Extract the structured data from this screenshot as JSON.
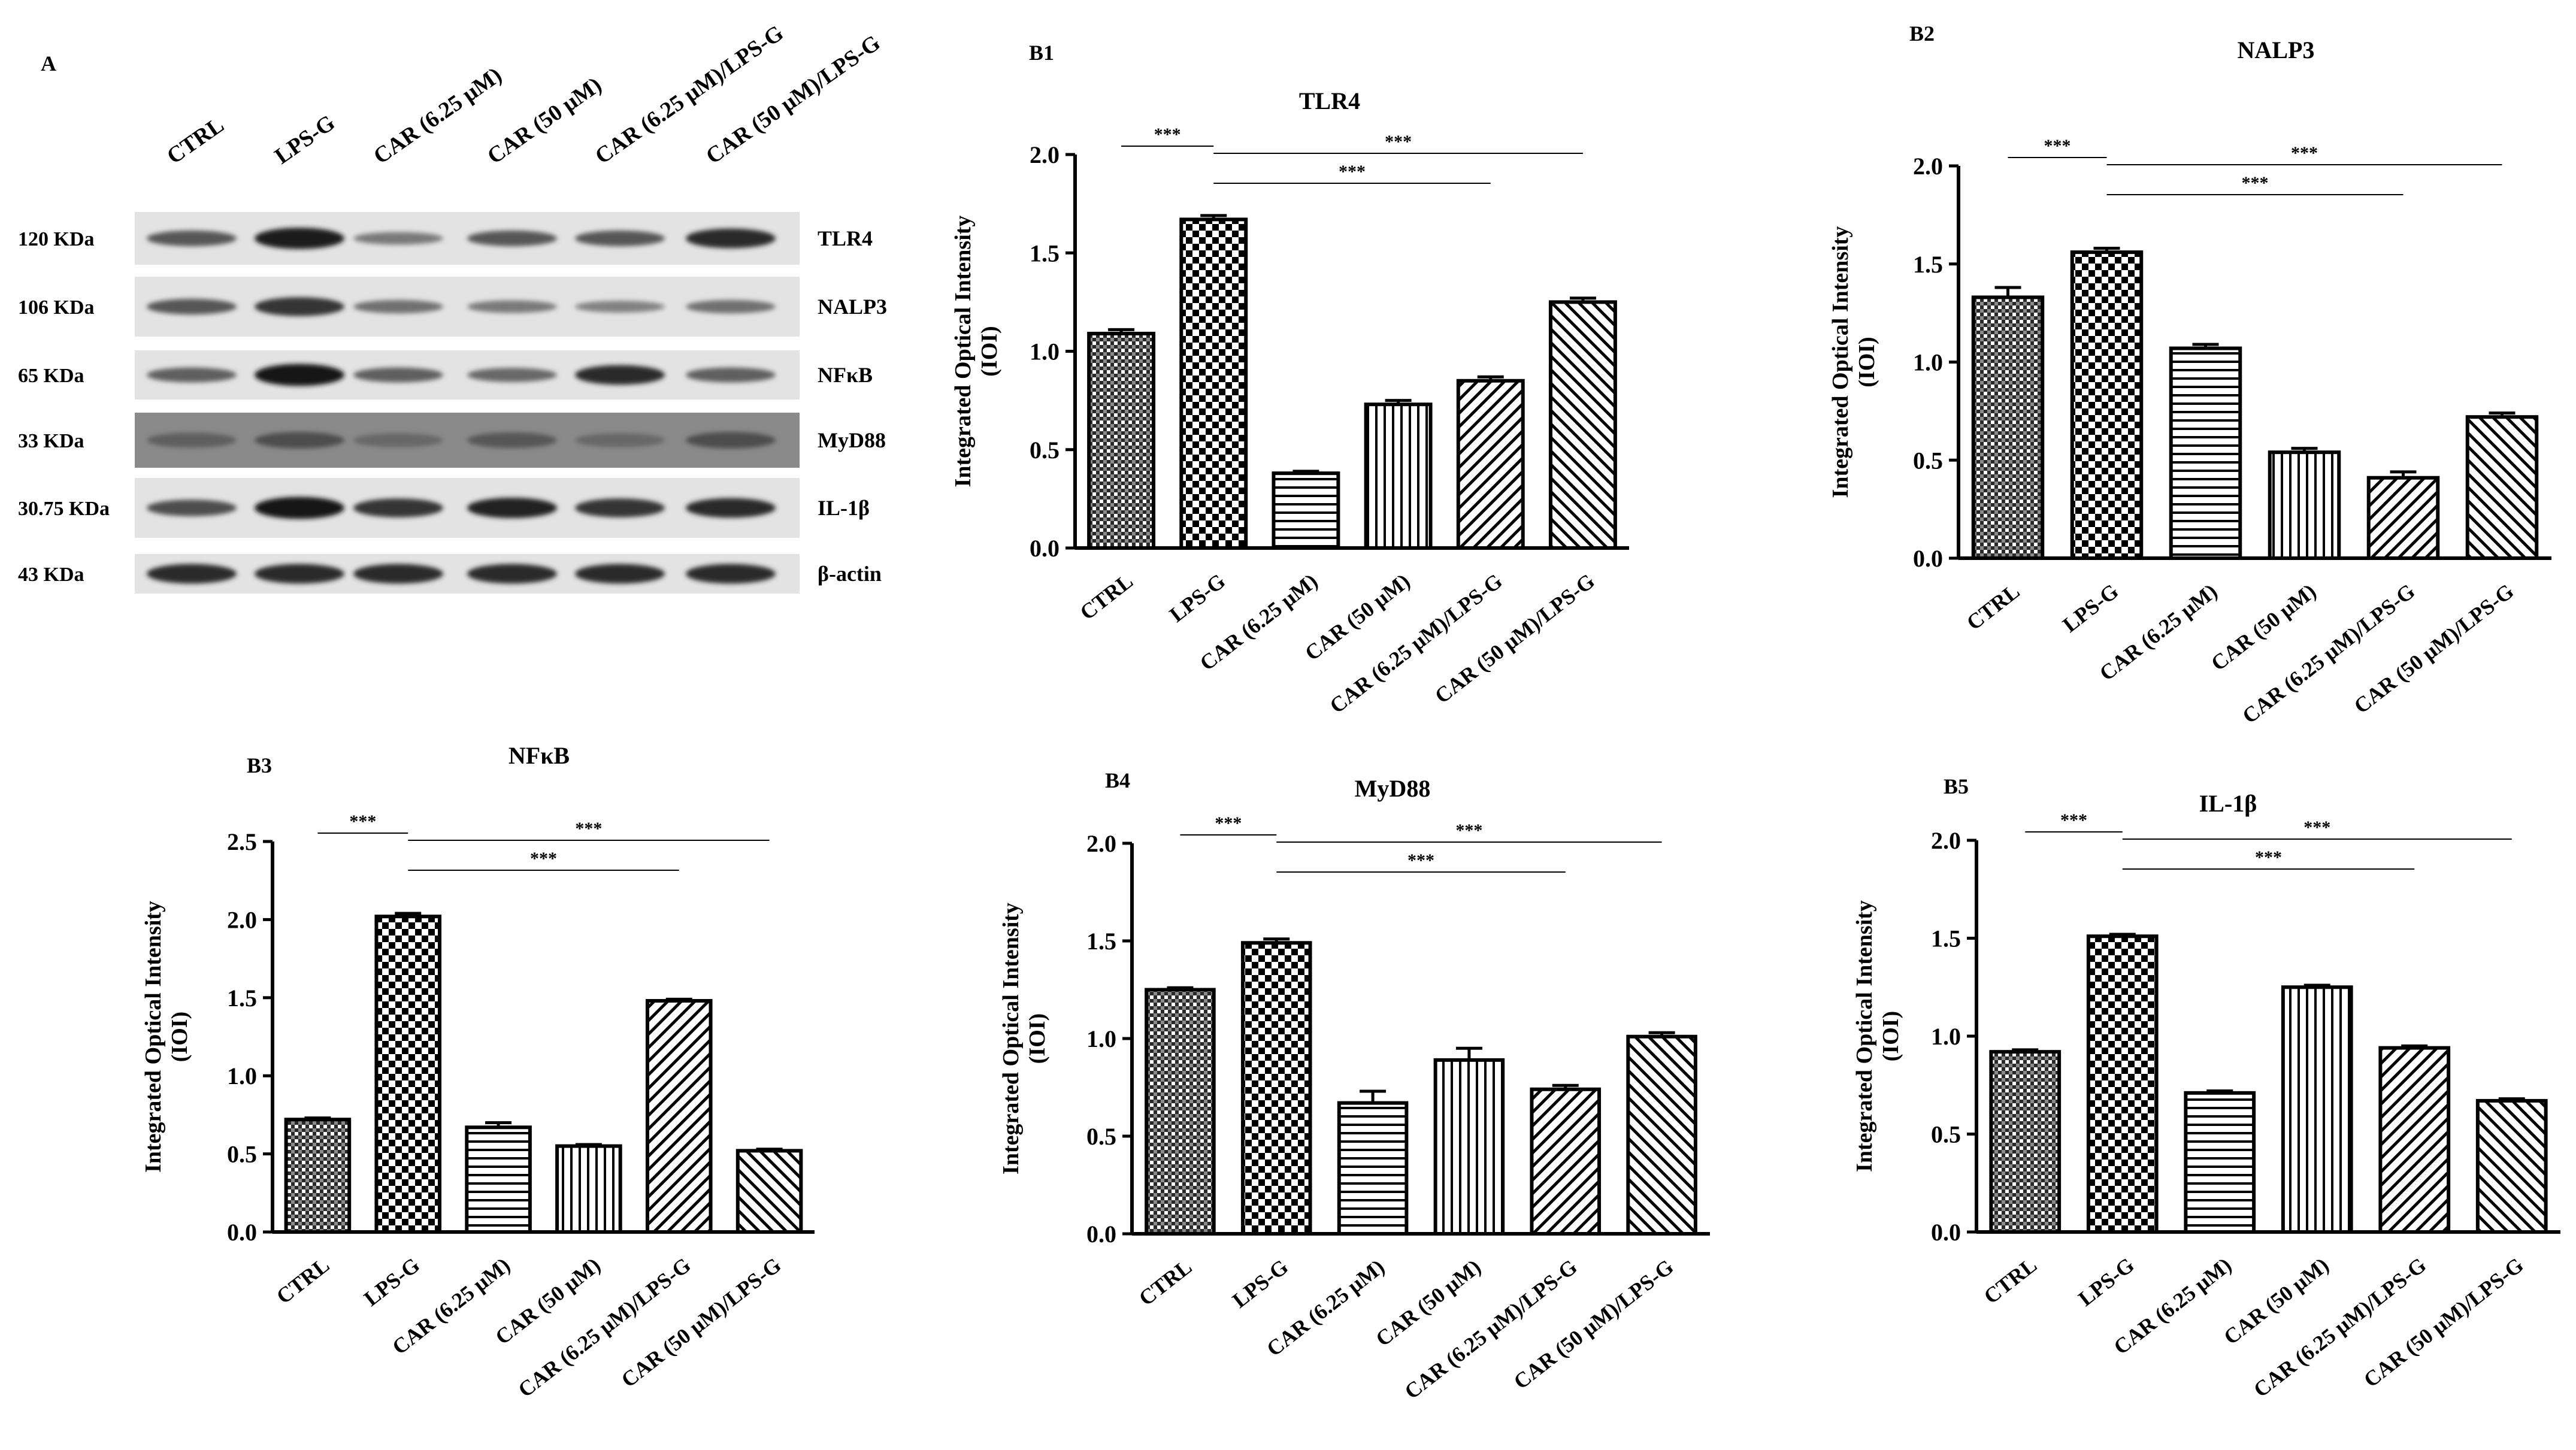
{
  "blot": {
    "panel_label": "A",
    "lanes": [
      "CTRL",
      "LPS-G",
      "CAR (6.25 μM)",
      "CAR (50 μM)",
      "CAR (6.25 μM)/LPS-G",
      "CAR (50 μM)/LPS-G"
    ],
    "rows": [
      {
        "mw": "120 KDa",
        "protein": "TLR4",
        "intensity": [
          0.55,
          0.9,
          0.35,
          0.55,
          0.55,
          0.8
        ]
      },
      {
        "mw": "106 KDa",
        "protein": "NALP3",
        "intensity": [
          0.55,
          0.75,
          0.4,
          0.35,
          0.3,
          0.4
        ]
      },
      {
        "mw": "65 KDa",
        "protein": "NFκB",
        "intensity": [
          0.5,
          0.95,
          0.5,
          0.45,
          0.8,
          0.5
        ]
      },
      {
        "mw": "33 KDa",
        "protein": "MyD88",
        "intensity": [
          0.5,
          0.6,
          0.45,
          0.55,
          0.45,
          0.6
        ]
      },
      {
        "mw": "30.75 KDa",
        "protein": "IL-1β",
        "intensity": [
          0.6,
          0.95,
          0.75,
          0.85,
          0.75,
          0.8
        ]
      },
      {
        "mw": "43 KDa",
        "protein": "β-actin",
        "intensity": [
          0.8,
          0.8,
          0.8,
          0.8,
          0.8,
          0.8
        ]
      }
    ]
  },
  "chart_data": [
    {
      "panel": "B1",
      "type": "bar",
      "title": "TLR4",
      "categories": [
        "CTRL",
        "LPS-G",
        "CAR (6.25 μM)",
        "CAR (50 μM)",
        "CAR (6.25 μM)/LPS-G",
        "CAR (50 μM)/LPS-G"
      ],
      "values": [
        1.09,
        1.67,
        0.38,
        0.73,
        0.85,
        1.25
      ],
      "errors": [
        0.02,
        0.02,
        0.01,
        0.02,
        0.02,
        0.02
      ],
      "ylabel": [
        "Integrated  Optical Intensity",
        "(IOI)"
      ],
      "ylim": [
        0,
        2.0
      ],
      "yticks": [
        "0.0",
        "0.5",
        "1.0",
        "1.5",
        "2.0"
      ],
      "significance": [
        {
          "from": 0,
          "to": 1,
          "label": "***",
          "level": 0
        },
        {
          "from": 1,
          "to": 5,
          "label": "***",
          "level": 1
        },
        {
          "from": 1,
          "to": 4,
          "label": "***",
          "level": 2
        }
      ]
    },
    {
      "panel": "B2",
      "type": "bar",
      "title": "NALP3",
      "categories": [
        "CTRL",
        "LPS-G",
        "CAR (6.25 μM)",
        "CAR (50 μM)",
        "CAR (6.25 μM)/LPS-G",
        "CAR (50 μM)/LPS-G"
      ],
      "values": [
        1.33,
        1.56,
        1.07,
        0.54,
        0.41,
        0.72
      ],
      "errors": [
        0.05,
        0.02,
        0.02,
        0.02,
        0.03,
        0.02
      ],
      "ylabel": [
        "Integrated  Optical Intensity",
        "(IOI)"
      ],
      "ylim": [
        0,
        2.0
      ],
      "yticks": [
        "0.0",
        "0.5",
        "1.0",
        "1.5",
        "2.0"
      ],
      "significance": [
        {
          "from": 0,
          "to": 1,
          "label": "***",
          "level": 0
        },
        {
          "from": 1,
          "to": 5,
          "label": "***",
          "level": 1
        },
        {
          "from": 1,
          "to": 4,
          "label": "***",
          "level": 2
        }
      ]
    },
    {
      "panel": "B3",
      "type": "bar",
      "title": "NFκB",
      "categories": [
        "CTRL",
        "LPS-G",
        "CAR (6.25 μM)",
        "CAR (50 μM)",
        "CAR (6.25 μM)/LPS-G",
        "CAR (50 μM)/LPS-G"
      ],
      "values": [
        0.72,
        2.02,
        0.67,
        0.55,
        1.48,
        0.52
      ],
      "errors": [
        0.01,
        0.02,
        0.03,
        0.01,
        0.01,
        0.01
      ],
      "ylabel": [
        "Integrated  Optical Intensity",
        "(IOI)"
      ],
      "ylim": [
        0,
        2.5
      ],
      "yticks": [
        "0.0",
        "0.5",
        "1.0",
        "1.5",
        "2.0",
        "2.5"
      ],
      "significance": [
        {
          "from": 0,
          "to": 1,
          "label": "***",
          "level": 0
        },
        {
          "from": 1,
          "to": 5,
          "label": "***",
          "level": 1
        },
        {
          "from": 1,
          "to": 4,
          "label": "***",
          "level": 2
        }
      ]
    },
    {
      "panel": "B4",
      "type": "bar",
      "title": "MyD88",
      "categories": [
        "CTRL",
        "LPS-G",
        "CAR (6.25 μM)",
        "CAR (50 μM)",
        "CAR (6.25 μM)/LPS-G",
        "CAR (50 μM)/LPS-G"
      ],
      "values": [
        1.25,
        1.49,
        0.67,
        0.89,
        0.74,
        1.01
      ],
      "errors": [
        0.01,
        0.02,
        0.06,
        0.06,
        0.02,
        0.02
      ],
      "ylabel": [
        "Integrated  Optical Intensity",
        "(IOI)"
      ],
      "ylim": [
        0,
        2.0
      ],
      "yticks": [
        "0.0",
        "0.5",
        "1.0",
        "1.5",
        "2.0"
      ],
      "significance": [
        {
          "from": 0,
          "to": 1,
          "label": "***",
          "level": 0
        },
        {
          "from": 1,
          "to": 5,
          "label": "***",
          "level": 1
        },
        {
          "from": 1,
          "to": 4,
          "label": "***",
          "level": 2
        }
      ]
    },
    {
      "panel": "B5",
      "type": "bar",
      "title": "IL-1β",
      "categories": [
        "CTRL",
        "LPS-G",
        "CAR (6.25 μM)",
        "CAR (50 μM)",
        "CAR (6.25 μM)/LPS-G",
        "CAR (50 μM)/LPS-G"
      ],
      "values": [
        0.92,
        1.51,
        0.71,
        1.25,
        0.94,
        0.67
      ],
      "errors": [
        0.01,
        0.01,
        0.01,
        0.01,
        0.01,
        0.01
      ],
      "ylabel": [
        "Integrated  Optical Intensity",
        "(IOI)"
      ],
      "ylim": [
        0,
        2.0
      ],
      "yticks": [
        "0.0",
        "0.5",
        "1.0",
        "1.5",
        "2.0"
      ],
      "significance": [
        {
          "from": 0,
          "to": 1,
          "label": "***",
          "level": 0
        },
        {
          "from": 1,
          "to": 5,
          "label": "***",
          "level": 1
        },
        {
          "from": 1,
          "to": 4,
          "label": "***",
          "level": 2
        }
      ]
    }
  ]
}
